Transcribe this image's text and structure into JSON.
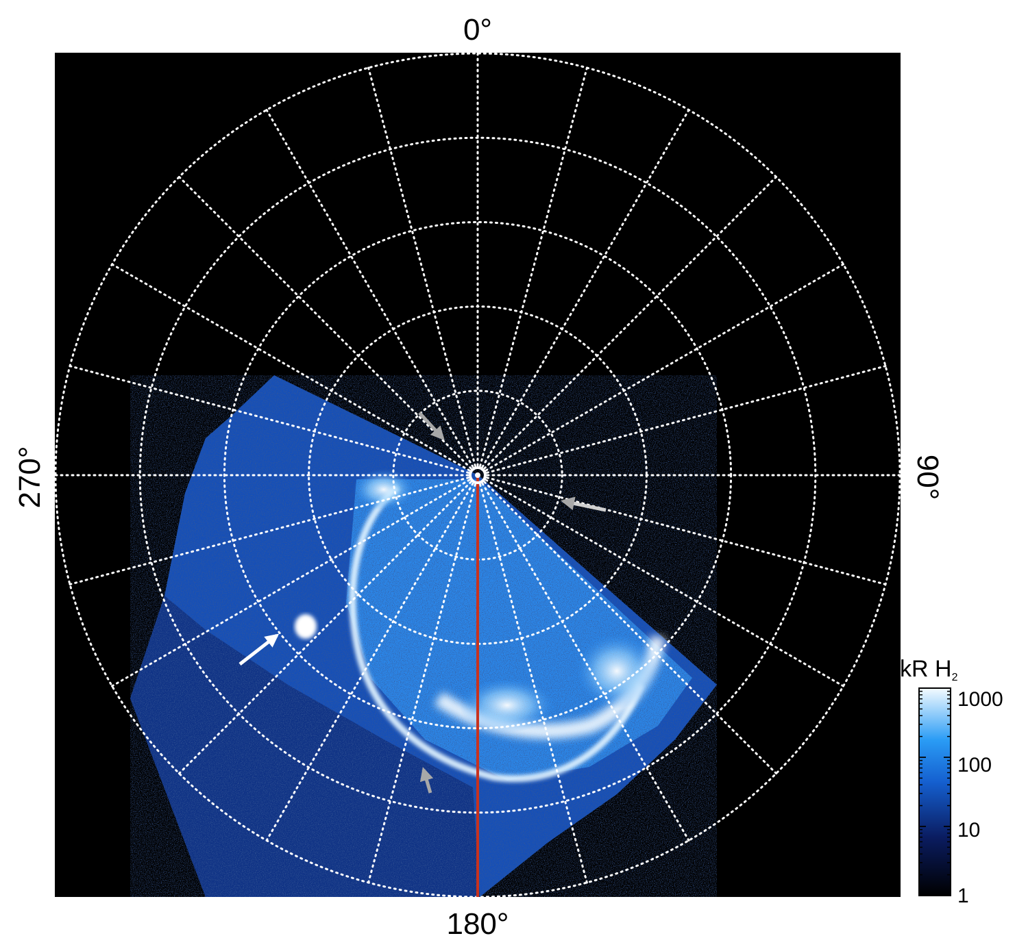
{
  "figure": {
    "longitude_labels": {
      "top": "0°",
      "right": "90°",
      "bottom": "180°",
      "left": "270°"
    },
    "colorbar": {
      "title": "kR H",
      "title_subscript": "2",
      "tick_labels": [
        "1000",
        "100",
        "10",
        "1"
      ],
      "scale": "log",
      "range": [
        1,
        1000
      ]
    },
    "colors": {
      "background": "#000000",
      "grid": "#ffffff",
      "meridian_line": "#c8321e",
      "emission_low": "#0a1c60",
      "emission_mid": "#2a8cf0",
      "emission_high": "#f0faff",
      "arrow_white": "#ffffff",
      "arrow_gray": "#a8a8a8"
    },
    "grid": {
      "style": "dotted",
      "meridian_spacing_deg": 15,
      "parallel_rings": 5
    },
    "annotations": [
      {
        "name": "arrow-white",
        "color": "white"
      },
      {
        "name": "arrow-gray-upper",
        "color": "gray"
      },
      {
        "name": "arrow-gray-right",
        "color": "gray"
      },
      {
        "name": "arrow-gray-lower",
        "color": "gray"
      }
    ]
  }
}
